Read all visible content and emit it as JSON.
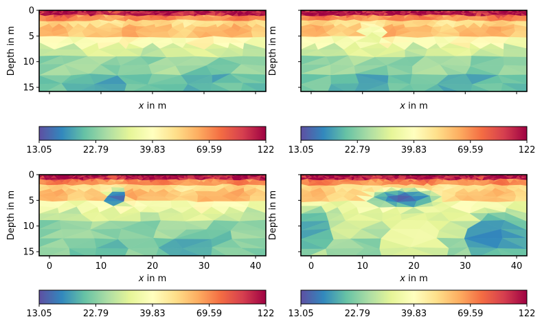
{
  "figure": {
    "panels": 4,
    "layout": "2x2"
  },
  "chart_data": [
    {
      "type": "heatmap",
      "name": "panel-top-left",
      "title": "",
      "xlabel": "x in m",
      "ylabel": "Depth in m",
      "xlim": [
        -2,
        42
      ],
      "ylim": [
        15.8,
        0
      ],
      "xticks": [
        0,
        10,
        20,
        30,
        40
      ],
      "xtick_labels_visible": false,
      "yticks": [
        0,
        5,
        10,
        15
      ],
      "ytick_labels": [
        "0",
        "5",
        "10",
        "15"
      ],
      "ytick_labels_visible": true,
      "colormap": "Spectral_r",
      "color_scale": "log",
      "clim": [
        13.05,
        122
      ],
      "colorbar": {
        "orientation": "horizontal",
        "ticks": [
          "13.05",
          "22.79",
          "39.83",
          "69.59",
          "122"
        ]
      },
      "layers": [
        {
          "depth": [
            0,
            1
          ],
          "value": 110
        },
        {
          "depth": [
            1,
            2
          ],
          "value": 70
        },
        {
          "depth": [
            2,
            3
          ],
          "value": 50
        },
        {
          "depth": [
            3,
            5
          ],
          "value": 58
        },
        {
          "depth": [
            5,
            7
          ],
          "value": 40
        },
        {
          "depth": [
            7,
            9
          ],
          "value": 30
        },
        {
          "depth": [
            9,
            12
          ],
          "value": 24
        },
        {
          "depth": [
            12,
            16
          ],
          "value": 20
        }
      ],
      "anomalies": []
    },
    {
      "type": "heatmap",
      "name": "panel-top-right",
      "title": "",
      "xlabel": "x in m",
      "ylabel": "Depth in m",
      "xlim": [
        -2,
        42
      ],
      "ylim": [
        15.8,
        0
      ],
      "xticks": [
        0,
        10,
        20,
        30,
        40
      ],
      "xtick_labels_visible": false,
      "yticks": [
        0,
        5,
        10,
        15
      ],
      "ytick_labels_visible": false,
      "colormap": "Spectral_r",
      "color_scale": "log",
      "clim": [
        13.05,
        122
      ],
      "colorbar": {
        "orientation": "horizontal",
        "ticks": [
          "13.05",
          "22.79",
          "39.83",
          "69.59",
          "122"
        ]
      },
      "layers": [
        {
          "depth": [
            0,
            1
          ],
          "value": 110
        },
        {
          "depth": [
            1,
            2
          ],
          "value": 70
        },
        {
          "depth": [
            2,
            3
          ],
          "value": 50
        },
        {
          "depth": [
            3,
            5
          ],
          "value": 58
        },
        {
          "depth": [
            5,
            7
          ],
          "value": 40
        },
        {
          "depth": [
            7,
            9
          ],
          "value": 30
        },
        {
          "depth": [
            9,
            12
          ],
          "value": 24
        },
        {
          "depth": [
            12,
            16
          ],
          "value": 20
        }
      ],
      "anomalies": [
        {
          "x": 12,
          "z": 5,
          "rx": 3,
          "rz": 2.5,
          "value": 32
        }
      ]
    },
    {
      "type": "heatmap",
      "name": "panel-bottom-left",
      "title": "",
      "xlabel": "x in m",
      "ylabel": "Depth in m",
      "xlim": [
        -2,
        42
      ],
      "ylim": [
        15.8,
        0
      ],
      "xticks": [
        0,
        10,
        20,
        30,
        40
      ],
      "xtick_labels": [
        "0",
        "10",
        "20",
        "30",
        "40"
      ],
      "xtick_labels_visible": true,
      "yticks": [
        0,
        5,
        10,
        15
      ],
      "ytick_labels": [
        "0",
        "5",
        "10",
        "15"
      ],
      "ytick_labels_visible": true,
      "colormap": "Spectral_r",
      "color_scale": "log",
      "clim": [
        13.05,
        122
      ],
      "colorbar": {
        "orientation": "horizontal",
        "ticks": [
          "13.05",
          "22.79",
          "39.83",
          "69.59",
          "122"
        ]
      },
      "layers": [
        {
          "depth": [
            0,
            1
          ],
          "value": 110
        },
        {
          "depth": [
            1,
            2
          ],
          "value": 70
        },
        {
          "depth": [
            2,
            3
          ],
          "value": 50
        },
        {
          "depth": [
            3,
            5
          ],
          "value": 58
        },
        {
          "depth": [
            5,
            7
          ],
          "value": 38
        },
        {
          "depth": [
            7,
            9
          ],
          "value": 30
        },
        {
          "depth": [
            9,
            12
          ],
          "value": 24
        },
        {
          "depth": [
            12,
            16
          ],
          "value": 22
        }
      ],
      "anomalies": [
        {
          "x": 13,
          "z": 4.5,
          "rx": 2.5,
          "rz": 2,
          "value": 14
        },
        {
          "x": 26,
          "z": 14,
          "rx": 6,
          "rz": 3,
          "value": 18
        }
      ]
    },
    {
      "type": "heatmap",
      "name": "panel-bottom-right",
      "title": "",
      "xlabel": "x in m",
      "ylabel": "Depth in m",
      "xlim": [
        -2,
        42
      ],
      "ylim": [
        15.8,
        0
      ],
      "xticks": [
        0,
        10,
        20,
        30,
        40
      ],
      "xtick_labels": [
        "0",
        "10",
        "20",
        "30",
        "40"
      ],
      "xtick_labels_visible": true,
      "yticks": [
        0,
        5,
        10,
        15
      ],
      "ytick_labels_visible": false,
      "colormap": "Spectral_r",
      "color_scale": "log",
      "clim": [
        13.05,
        122
      ],
      "colorbar": {
        "orientation": "horizontal",
        "ticks": [
          "13.05",
          "22.79",
          "39.83",
          "69.59",
          "122"
        ]
      },
      "layers": [
        {
          "depth": [
            0,
            1
          ],
          "value": 110
        },
        {
          "depth": [
            1,
            2
          ],
          "value": 70
        },
        {
          "depth": [
            2,
            3
          ],
          "value": 50
        },
        {
          "depth": [
            3,
            5
          ],
          "value": 55
        },
        {
          "depth": [
            5,
            7
          ],
          "value": 36
        },
        {
          "depth": [
            7,
            9
          ],
          "value": 30
        },
        {
          "depth": [
            9,
            12
          ],
          "value": 28
        },
        {
          "depth": [
            12,
            16
          ],
          "value": 25
        }
      ],
      "anomalies": [
        {
          "x": 18,
          "z": 4.5,
          "rx": 8,
          "rz": 2,
          "value": 14
        },
        {
          "x": 36,
          "z": 12,
          "rx": 7,
          "rz": 5,
          "value": 16
        },
        {
          "x": 0,
          "z": 11,
          "rx": 4,
          "rz": 5,
          "value": 18
        },
        {
          "x": 20,
          "z": 12,
          "rx": 7,
          "rz": 5,
          "value": 36
        }
      ]
    }
  ],
  "labels": {
    "ylabel": "Depth in m",
    "xlabel_italic": "x",
    "xlabel_rest": " in m"
  }
}
